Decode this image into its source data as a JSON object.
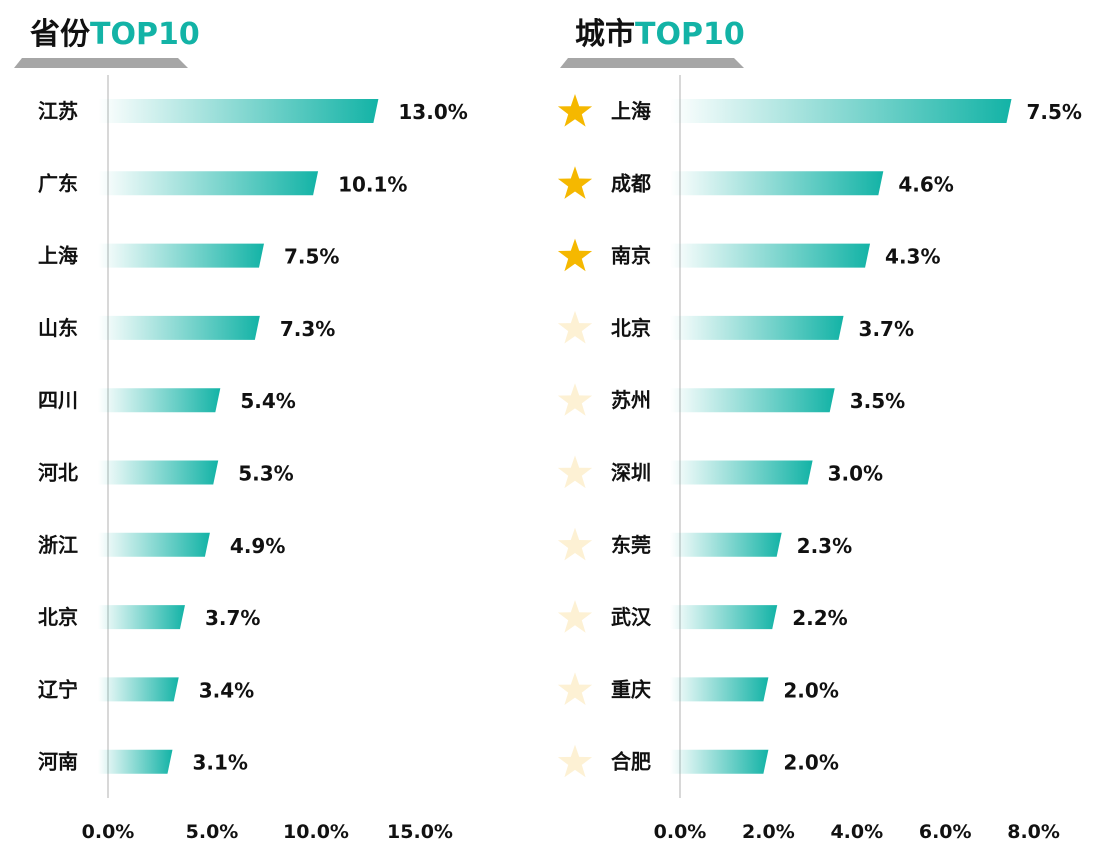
{
  "colors": {
    "accent": "#13b3a6",
    "axis": "#cccccc",
    "star_top": "#f5b800",
    "star_rest": "#fdf1d4",
    "title_underline": "#6b6b6b"
  },
  "chart_data": [
    {
      "type": "bar",
      "orientation": "horizontal",
      "title_prefix": "省份",
      "title_suffix": "TOP10",
      "categories": [
        "江苏",
        "广东",
        "上海",
        "山东",
        "四川",
        "河北",
        "浙江",
        "北京",
        "辽宁",
        "河南"
      ],
      "values": [
        13.0,
        10.1,
        7.5,
        7.3,
        5.4,
        5.3,
        4.9,
        3.7,
        3.4,
        3.1
      ],
      "value_labels": [
        "13.0%",
        "10.1%",
        "7.5%",
        "7.3%",
        "5.4%",
        "5.3%",
        "4.9%",
        "3.7%",
        "3.4%",
        "3.1%"
      ],
      "xlim": [
        0,
        15
      ],
      "ticks": [
        0,
        5,
        10,
        15
      ],
      "tick_labels": [
        "0.0%",
        "5.0%",
        "10.0%",
        "15.0%"
      ],
      "xlabel": "",
      "ylabel": "",
      "grid": false,
      "stars": []
    },
    {
      "type": "bar",
      "orientation": "horizontal",
      "title_prefix": "城市",
      "title_suffix": "TOP10",
      "categories": [
        "上海",
        "成都",
        "南京",
        "北京",
        "苏州",
        "深圳",
        "东莞",
        "武汉",
        "重庆",
        "合肥"
      ],
      "values": [
        7.5,
        4.6,
        4.3,
        3.7,
        3.5,
        3.0,
        2.3,
        2.2,
        2.0,
        2.0
      ],
      "value_labels": [
        "7.5%",
        "4.6%",
        "4.3%",
        "3.7%",
        "3.5%",
        "3.0%",
        "2.3%",
        "2.2%",
        "2.0%",
        "2.0%"
      ],
      "xlim": [
        0,
        8
      ],
      "ticks": [
        0,
        2,
        4,
        6,
        8
      ],
      "tick_labels": [
        "0.0%",
        "2.0%",
        "4.0%",
        "6.0%",
        "8.0%"
      ],
      "xlabel": "",
      "ylabel": "",
      "grid": false,
      "stars": [
        "highlight",
        "highlight",
        "highlight",
        "faded",
        "faded",
        "faded",
        "faded",
        "faded",
        "faded",
        "faded"
      ]
    }
  ]
}
